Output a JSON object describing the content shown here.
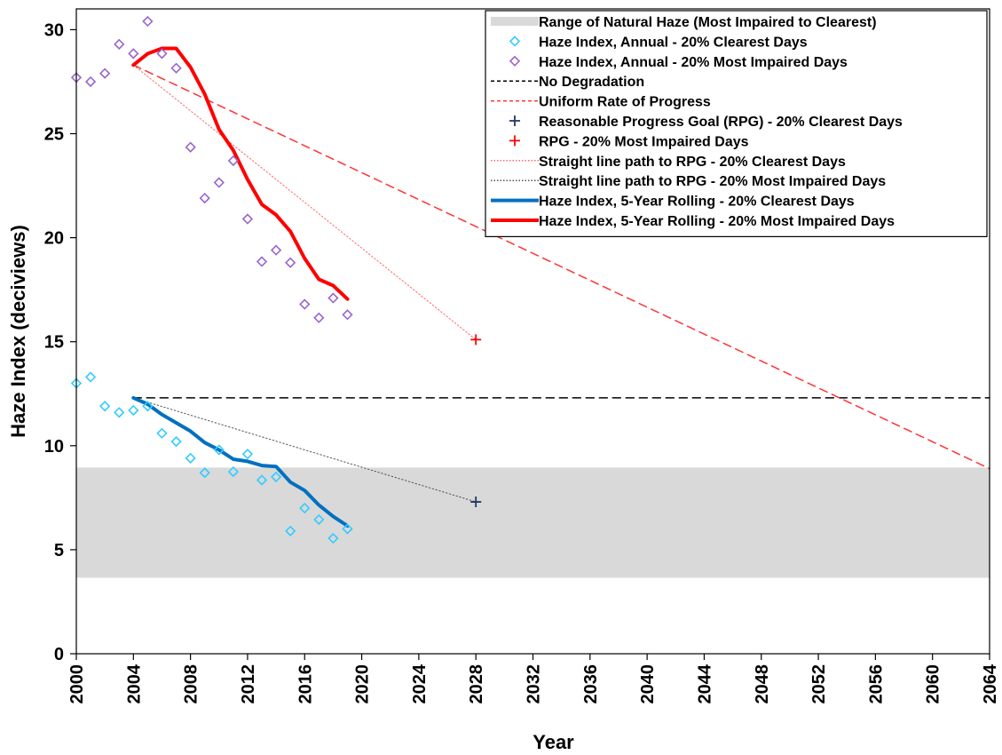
{
  "chart_data": {
    "type": "line",
    "title": "",
    "xlabel": "Year",
    "ylabel": "Haze Index (deciviews)",
    "xlim": [
      2000,
      2064
    ],
    "ylim": [
      0,
      31
    ],
    "x_ticks": [
      2000,
      2004,
      2008,
      2012,
      2016,
      2020,
      2024,
      2028,
      2032,
      2036,
      2040,
      2044,
      2048,
      2052,
      2056,
      2060,
      2064
    ],
    "y_ticks": [
      0,
      5,
      10,
      15,
      20,
      25,
      30
    ],
    "grid": false,
    "legend_position": "top-right",
    "natural_haze_range": {
      "name": "Range of Natural Haze (Most Impaired to Clearest)",
      "y_low": 3.65,
      "y_high": 8.95,
      "color": "#d9d9d9"
    },
    "series": [
      {
        "name": "Haze Index, Annual - 20% Clearest Days",
        "kind": "marker-diamond",
        "color": "#33ccff",
        "points": [
          [
            2000,
            13.0
          ],
          [
            2001,
            13.3
          ],
          [
            2002,
            11.9
          ],
          [
            2003,
            11.6
          ],
          [
            2004,
            11.7
          ],
          [
            2005,
            11.9
          ],
          [
            2006,
            10.6
          ],
          [
            2007,
            10.2
          ],
          [
            2008,
            9.4
          ],
          [
            2009,
            8.7
          ],
          [
            2010,
            9.8
          ],
          [
            2011,
            8.75
          ],
          [
            2012,
            9.6
          ],
          [
            2013,
            8.35
          ],
          [
            2014,
            8.5
          ],
          [
            2015,
            5.9
          ],
          [
            2016,
            7.0
          ],
          [
            2017,
            6.45
          ],
          [
            2018,
            5.55
          ],
          [
            2019,
            6.0
          ]
        ]
      },
      {
        "name": "Haze Index, Annual - 20% Most Impaired Days",
        "kind": "marker-diamond",
        "color": "#9966cc",
        "points": [
          [
            2000,
            27.7
          ],
          [
            2001,
            27.5
          ],
          [
            2002,
            27.9
          ],
          [
            2003,
            29.3
          ],
          [
            2004,
            28.85
          ],
          [
            2005,
            30.4
          ],
          [
            2006,
            28.85
          ],
          [
            2007,
            28.15
          ],
          [
            2008,
            24.35
          ],
          [
            2009,
            21.9
          ],
          [
            2010,
            22.65
          ],
          [
            2011,
            23.7
          ],
          [
            2012,
            20.9
          ],
          [
            2013,
            18.85
          ],
          [
            2014,
            19.4
          ],
          [
            2015,
            18.8
          ],
          [
            2016,
            16.8
          ],
          [
            2017,
            16.15
          ],
          [
            2018,
            17.1
          ],
          [
            2019,
            16.3
          ]
        ]
      },
      {
        "name": "No Degradation",
        "kind": "line-dashed",
        "color": "#000000",
        "points": [
          [
            2004,
            12.3
          ],
          [
            2064,
            12.3
          ]
        ]
      },
      {
        "name": "Uniform Rate of Progress",
        "kind": "line-dashed",
        "color": "#ff3333",
        "points": [
          [
            2004,
            28.3
          ],
          [
            2064,
            8.9
          ]
        ]
      },
      {
        "name": "Reasonable Progress Goal (RPG) - 20% Clearest Days",
        "kind": "marker-plus",
        "color": "#1f3864",
        "points": [
          [
            2028,
            7.3
          ]
        ]
      },
      {
        "name": "RPG - 20% Most Impaired Days",
        "kind": "marker-plus",
        "color": "#ff0000",
        "points": [
          [
            2028,
            15.1
          ]
        ]
      },
      {
        "name": "Straight line path to RPG - 20% Clearest Days",
        "kind": "line-dotted",
        "color": "#ff6666",
        "points": [
          [
            2004,
            28.3
          ],
          [
            2028,
            15.1
          ]
        ]
      },
      {
        "name": "Straight line path to RPG - 20% Most Impaired Days",
        "kind": "line-dotted",
        "color": "#555555",
        "points": [
          [
            2004,
            12.3
          ],
          [
            2028,
            7.3
          ]
        ]
      },
      {
        "name": "Haze Index, 5-Year Rolling - 20% Clearest Days",
        "kind": "line-solid",
        "color": "#0070c0",
        "points": [
          [
            2004,
            12.3
          ],
          [
            2005,
            12.0
          ],
          [
            2006,
            11.5
          ],
          [
            2007,
            11.1
          ],
          [
            2008,
            10.7
          ],
          [
            2009,
            10.15
          ],
          [
            2010,
            9.8
          ],
          [
            2011,
            9.35
          ],
          [
            2012,
            9.25
          ],
          [
            2013,
            9.05
          ],
          [
            2014,
            9.0
          ],
          [
            2015,
            8.25
          ],
          [
            2016,
            7.85
          ],
          [
            2017,
            7.15
          ],
          [
            2018,
            6.6
          ],
          [
            2019,
            6.15
          ]
        ]
      },
      {
        "name": "Haze Index, 5-Year Rolling - 20% Most Impaired Days",
        "kind": "line-solid",
        "color": "#ff0000",
        "points": [
          [
            2004,
            28.3
          ],
          [
            2005,
            28.85
          ],
          [
            2006,
            29.1
          ],
          [
            2007,
            29.1
          ],
          [
            2008,
            28.2
          ],
          [
            2009,
            26.9
          ],
          [
            2010,
            25.2
          ],
          [
            2011,
            24.2
          ],
          [
            2012,
            22.8
          ],
          [
            2013,
            21.6
          ],
          [
            2014,
            21.1
          ],
          [
            2015,
            20.3
          ],
          [
            2016,
            19.0
          ],
          [
            2017,
            18.0
          ],
          [
            2018,
            17.7
          ],
          [
            2019,
            17.05
          ]
        ]
      }
    ]
  }
}
